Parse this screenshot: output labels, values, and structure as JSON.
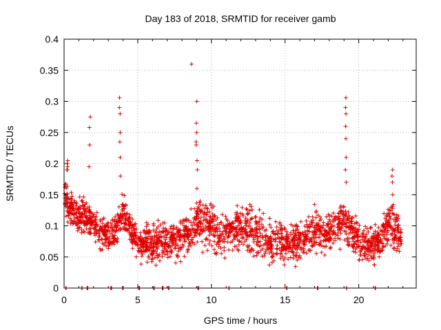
{
  "chart_data": {
    "type": "scatter",
    "title": "Day 183 of 2018, SRMTID for receiver gamb",
    "xlabel": "GPS time / hours",
    "ylabel": "SRMTID / TECUs",
    "xlim": [
      0,
      23.9
    ],
    "ylim": [
      0,
      0.4
    ],
    "x_ticks": [
      0,
      5,
      10,
      15,
      20
    ],
    "y_ticks": [
      0,
      0.05,
      0.1,
      0.15,
      0.2,
      0.25,
      0.3,
      0.35,
      0.4
    ],
    "y_tick_labels": [
      "0",
      "0.05",
      "0.1",
      "0.15",
      "0.2",
      "0.25",
      "0.3",
      "0.35",
      "0.4"
    ],
    "grid": true,
    "marker": "+",
    "color": "#e00000",
    "zero_markers_x": [
      0.1,
      1.2,
      1.6,
      3.2,
      4.0,
      5.1,
      6.1,
      6.7,
      7.1,
      9.1,
      11.2,
      15.1,
      17.2,
      19.2,
      21.1
    ],
    "envelope_x": [
      0,
      0.5,
      1.0,
      1.5,
      2.0,
      2.5,
      3.0,
      3.5,
      4.0,
      4.5,
      5.0,
      5.5,
      6.0,
      6.5,
      7.0,
      7.5,
      8.0,
      8.5,
      9.0,
      9.5,
      10.0,
      10.5,
      11.0,
      11.5,
      12.0,
      12.5,
      13.0,
      13.5,
      14.0,
      14.5,
      15.0,
      15.5,
      16.0,
      16.5,
      17.0,
      17.5,
      18.0,
      18.5,
      19.0,
      19.5,
      20.0,
      20.5,
      21.0,
      21.5,
      22.0,
      22.5,
      22.9
    ],
    "envelope_low": [
      0.1,
      0.09,
      0.08,
      0.08,
      0.07,
      0.05,
      0.05,
      0.06,
      0.08,
      0.06,
      0.03,
      0.03,
      0.03,
      0.03,
      0.04,
      0.03,
      0.04,
      0.05,
      0.06,
      0.05,
      0.05,
      0.04,
      0.04,
      0.04,
      0.05,
      0.04,
      0.04,
      0.03,
      0.03,
      0.02,
      0.02,
      0.03,
      0.03,
      0.04,
      0.04,
      0.04,
      0.05,
      0.05,
      0.06,
      0.05,
      0.03,
      0.03,
      0.03,
      0.04,
      0.05,
      0.04,
      0.05
    ],
    "envelope_high": [
      0.2,
      0.16,
      0.15,
      0.15,
      0.14,
      0.13,
      0.12,
      0.13,
      0.16,
      0.14,
      0.1,
      0.12,
      0.11,
      0.12,
      0.11,
      0.12,
      0.12,
      0.13,
      0.16,
      0.16,
      0.15,
      0.13,
      0.14,
      0.14,
      0.15,
      0.15,
      0.14,
      0.13,
      0.12,
      0.13,
      0.12,
      0.12,
      0.11,
      0.12,
      0.14,
      0.13,
      0.13,
      0.14,
      0.16,
      0.13,
      0.12,
      0.11,
      0.11,
      0.12,
      0.16,
      0.15,
      0.11
    ],
    "spikes": [
      {
        "x": 0.25,
        "values": [
          0.19,
          0.195,
          0.2,
          0.205,
          0.19
        ]
      },
      {
        "x": 1.75,
        "values": [
          0.195,
          0.23,
          0.258,
          0.275
        ]
      },
      {
        "x": 3.8,
        "values": [
          0.18,
          0.21,
          0.235,
          0.25,
          0.28,
          0.29,
          0.306
        ]
      },
      {
        "x": 8.6,
        "values": [
          0.36
        ]
      },
      {
        "x": 9.0,
        "values": [
          0.16,
          0.19,
          0.205,
          0.23,
          0.235,
          0.25,
          0.265,
          0.3
        ]
      },
      {
        "x": 19.1,
        "values": [
          0.17,
          0.19,
          0.21,
          0.24,
          0.26,
          0.28,
          0.29,
          0.306
        ]
      },
      {
        "x": 22.3,
        "values": [
          0.15,
          0.17,
          0.18,
          0.19
        ]
      }
    ],
    "approx_point_count": 2200
  }
}
